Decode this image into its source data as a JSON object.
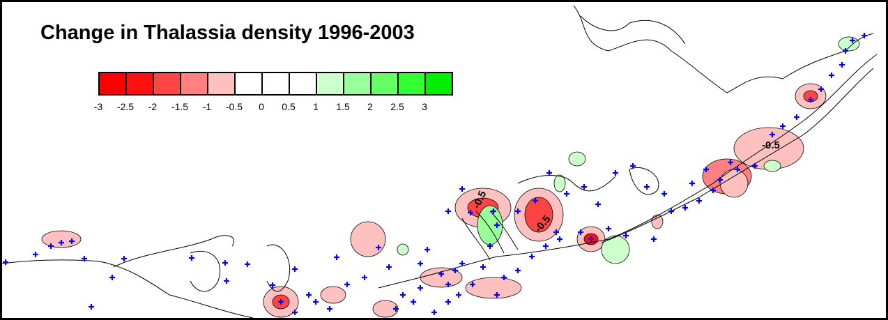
{
  "title": "Change in Thalassia density 1996-2003",
  "legend": {
    "colors": [
      "#ff0000",
      "#ff1111",
      "#ff4444",
      "#ff8080",
      "#ffc0c0",
      "#ffffff",
      "#ffffff",
      "#ffffff",
      "#ccffcc",
      "#99ff99",
      "#66ff66",
      "#33ff33",
      "#00ee00"
    ],
    "labels": [
      "-3",
      "-2.5",
      "-2",
      "-1.5",
      "-1",
      "-0.5",
      "0",
      "0.5",
      "1",
      "1.5",
      "2",
      "2.5",
      "3"
    ]
  },
  "contour_labels": [
    "-0.5",
    "-0.5",
    "-0.5"
  ],
  "marker_color": "#0000ff",
  "marker_symbol": "+"
}
